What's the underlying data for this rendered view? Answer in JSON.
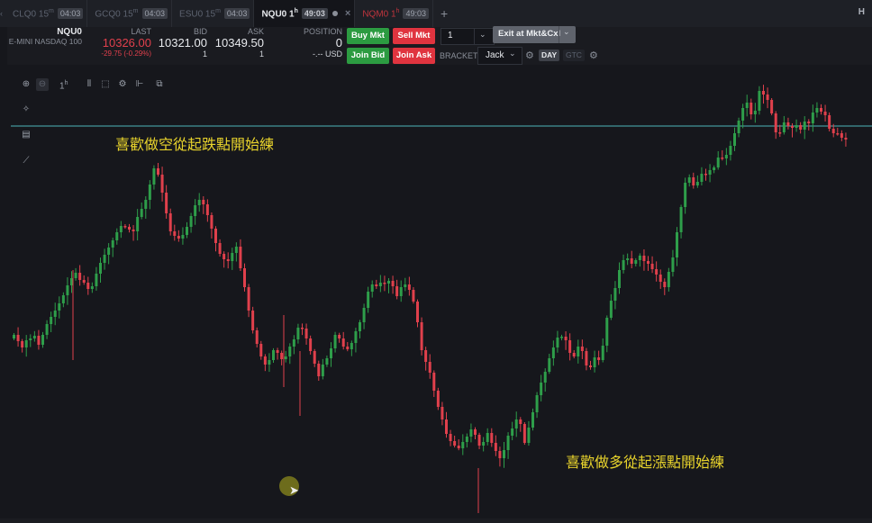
{
  "tabs": [
    {
      "name": "CLQ0 15",
      "sup": "m",
      "time": "04:03",
      "state": "inactive"
    },
    {
      "name": "GCQ0 15",
      "sup": "m",
      "time": "04:03",
      "state": "inactive"
    },
    {
      "name": "ESU0 15",
      "sup": "m",
      "time": "04:03",
      "state": "inactive"
    },
    {
      "name": "NQU0 1",
      "sup": "h",
      "time": "49:03",
      "state": "active"
    },
    {
      "name": "NQM0 1",
      "sup": "h",
      "time": "49:03",
      "state": "red"
    }
  ],
  "right_header_label": "H",
  "quote": {
    "symbol": "NQU0",
    "description": "E-MINI NASDAQ 100",
    "last_label": "LAST",
    "last_value": "10326.00",
    "last_change": "-29.75 (-0.29%)",
    "bid_label": "BID",
    "bid_value": "10321.00",
    "bid_size": "1",
    "ask_label": "ASK",
    "ask_value": "10349.50",
    "ask_size": "1",
    "position_label": "POSITION",
    "position_value": "0",
    "position_usd": "-.-- USD"
  },
  "order_buttons": {
    "buy_mkt": "Buy Mkt",
    "sell_mkt": "Sell Mkt",
    "join_bid": "Join Bid",
    "join_ask": "Join Ask",
    "quantity": "1",
    "exit": "Exit at Mkt&Cxl",
    "brackets_label": "BRACKETS",
    "bracket_value": "Jack",
    "day": "DAY",
    "gtc": "GTC"
  },
  "chart_toolbar": {
    "interval_label": "1",
    "interval_sup": "h"
  },
  "annotations": {
    "short_text": "喜歡做空從起跌點開始練",
    "long_text": "喜歡做多從起漲點開始練"
  },
  "colors": {
    "up": "#2e9e4a",
    "down": "#e0404c",
    "hline": "#4fb5b8",
    "annotation": "#e9d42c"
  },
  "chart_data": {
    "type": "candlestick",
    "symbol": "NQU0",
    "interval": "1h",
    "note": "Approximate candle path; no axis labels are printed in the screenshot.",
    "closes": [
      372,
      379,
      386,
      378,
      376,
      373,
      383,
      372,
      360,
      352,
      345,
      337,
      328,
      317,
      309,
      303,
      311,
      314,
      321,
      318,
      304,
      292,
      283,
      275,
      267,
      258,
      251,
      252,
      255,
      257,
      241,
      232,
      222,
      205,
      187,
      194,
      214,
      237,
      257,
      262,
      265,
      261,
      252,
      240,
      228,
      222,
      227,
      239,
      254,
      270,
      282,
      288,
      290,
      281,
      274,
      298,
      319,
      345,
      367,
      382,
      396,
      405,
      400,
      389,
      392,
      399,
      396,
      385,
      377,
      364,
      365,
      376,
      390,
      404,
      418,
      405,
      398,
      387,
      372,
      376,
      385,
      388,
      381,
      368,
      358,
      342,
      324,
      316,
      318,
      314,
      315,
      312,
      318,
      329,
      319,
      316,
      322,
      335,
      358,
      389,
      402,
      414,
      434,
      452,
      466,
      482,
      490,
      495,
      498,
      491,
      485,
      477,
      483,
      495,
      491,
      481,
      492,
      501,
      509,
      500,
      484,
      476,
      466,
      471,
      492,
      475,
      458,
      439,
      425,
      413,
      398,
      386,
      375,
      374,
      378,
      392,
      396,
      385,
      390,
      406,
      408,
      397,
      400,
      384,
      353,
      334,
      320,
      300,
      289,
      287,
      293,
      289,
      284,
      290,
      293,
      299,
      305,
      313,
      319,
      302,
      286,
      258,
      230,
      203,
      197,
      206,
      202,
      193,
      194,
      189,
      186,
      175,
      176,
      172,
      162,
      148,
      134,
      120,
      114,
      127,
      123,
      101,
      105,
      111,
      126,
      147,
      147,
      136,
      140,
      142,
      139,
      144,
      135,
      137,
      125,
      120,
      124,
      128,
      143,
      148,
      148,
      153,
      155
    ],
    "hline_level": "horizontal reference line near top"
  }
}
